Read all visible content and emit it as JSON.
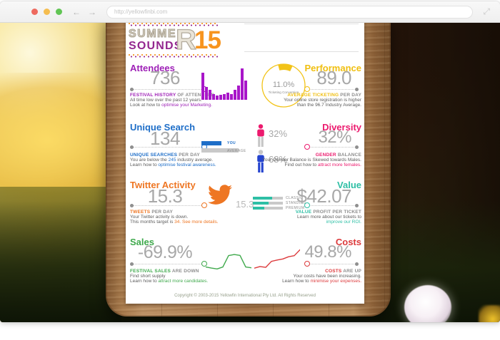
{
  "browser": {
    "url": "http://yellowfinbi.com"
  },
  "logo": {
    "line1": "SUMME",
    "line2": "SOUNDS",
    "big_letter": "R",
    "year": "15"
  },
  "gauge": {
    "value": "11.0%",
    "label": "Ticketing Conversion"
  },
  "panels": {
    "attendees": {
      "title": "Attendees",
      "value": "736",
      "tag": "FESTIVAL HISTORY",
      "tag2": "OF ATTENDEES",
      "desc1": "All time low over the past 12 years.",
      "desc2": "Look at how to",
      "link": "optimise your Marketing.",
      "color": "#9e21b7"
    },
    "performance": {
      "title": "Performance",
      "value": "89.0",
      "tag": "AVERAGE TICKETING",
      "tag2": "PER DAY",
      "desc1": "Your online store registration is higher",
      "desc2": "than the 96.7 Industry Average.",
      "color": "#f0bf10"
    },
    "unique_search": {
      "title": "Unique Search",
      "value": "134",
      "tag": "UNIQUE SEARCHES",
      "tag2": "PER DAY",
      "desc1a": "You are below the",
      "desc1b": "245",
      "desc1c": "industry average.",
      "desc2": "Learn how to",
      "link": "optimise festival awareness.",
      "you": "YOU",
      "average": "AVERAGE",
      "color": "#1e6ec8"
    },
    "diversity": {
      "title": "Diversity",
      "value": "32%",
      "female": "32%",
      "male": "68%",
      "tag": "GENDER",
      "tag2": "BALANCE",
      "desc1": "Your Gender Balance is Skewed towards Males.",
      "desc2": "Find out how to",
      "link": "attract more females.",
      "color": "#ec1a6e",
      "female_color": "#ec1a6e",
      "male_color": "#2544cf"
    },
    "twitter": {
      "title": "Twitter Activity",
      "value": "15.3",
      "icon_value": "15.3",
      "tag": "TWEETS",
      "tag2": "PER DAY",
      "desc1": "Your Twitter activity is down.",
      "desc2": "This months target is",
      "desc2b": "34.",
      "link": "See more details.",
      "color": "#ee7623"
    },
    "value": {
      "title": "Value",
      "value": "$42.07",
      "tag": "VALUE",
      "tag2": "PROFIT PER TICKET",
      "desc1": "Learn more about our tickets to",
      "link": "improve our ROI.",
      "tickets": [
        "CLASSIC",
        "STANDING",
        "PREMIUM"
      ],
      "color": "#2ebfa5"
    },
    "sales": {
      "title": "Sales",
      "value": "-69.9%",
      "tag": "FESTIVAL SALES",
      "tag2": "ARE DOWN",
      "desc1": "Find short supply",
      "desc2": "Learn how to",
      "link": "attract more candidates.",
      "color": "#3fa94c"
    },
    "costs": {
      "title": "Costs",
      "value": "49.8%",
      "tag": "COSTS",
      "tag2": "ARE UP",
      "desc1": "Your costs have been increasing.",
      "desc2": "Learn how to",
      "link": "minimise your expenses.",
      "color": "#dc3a3c"
    }
  },
  "footer": {
    "copyright": "Copyright © 2003-2015 Yellowfin International Pty Ltd. All Rights Reserved"
  },
  "chart_data": [
    {
      "type": "bar",
      "name": "attendees-history",
      "values": [
        62,
        29,
        22,
        13,
        9,
        11,
        13,
        16,
        13,
        22,
        33,
        71,
        44
      ],
      "color": "#a816c9"
    },
    {
      "type": "pie",
      "name": "ticketing-conversion-gauge",
      "values": [
        11,
        89
      ],
      "label": "11.0%",
      "color": "#f2c318"
    },
    {
      "type": "bar",
      "name": "unique-search-comparison",
      "series": [
        {
          "name": "YOU",
          "values": [
            134
          ]
        },
        {
          "name": "AVERAGE",
          "values": [
            245
          ]
        }
      ],
      "colors": [
        "#1e6ec8",
        "#c9c9c9"
      ]
    },
    {
      "type": "pie",
      "name": "gender-balance",
      "categories": [
        "Female",
        "Male"
      ],
      "values": [
        32,
        68
      ],
      "colors": [
        "#ec1a6e",
        "#2544cf"
      ]
    },
    {
      "type": "bar",
      "name": "ticket-class-mix",
      "categories": [
        "CLASSIC",
        "STANDING",
        "PREMIUM"
      ],
      "values": [
        65,
        52,
        38
      ],
      "color": "#2ebfa5"
    },
    {
      "type": "line",
      "name": "sales-trend",
      "values": [
        30,
        26,
        23,
        30,
        72,
        76,
        73,
        30,
        27
      ],
      "color": "#3fa94c"
    },
    {
      "type": "line",
      "name": "costs-trend",
      "values": [
        10,
        16,
        13,
        35,
        40,
        44,
        52,
        56,
        78
      ],
      "color": "#dc3a3c"
    }
  ]
}
